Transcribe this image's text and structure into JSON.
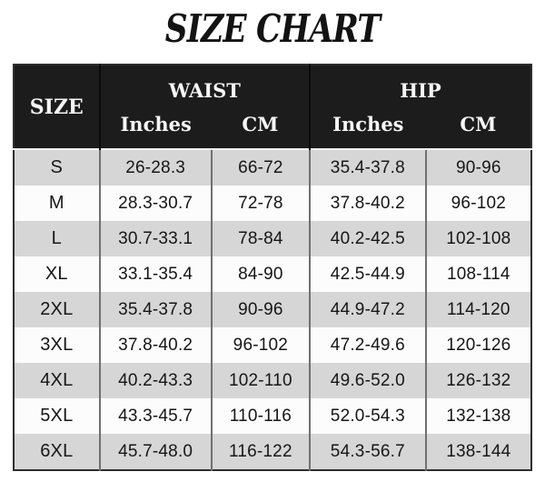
{
  "chart_data": {
    "type": "table",
    "title": "SIZE CHART",
    "column_groups": [
      {
        "label": "SIZE",
        "span": 1
      },
      {
        "label": "WAIST",
        "span": 2
      },
      {
        "label": "HIP",
        "span": 2
      }
    ],
    "sub_headers": [
      "Inches",
      "CM",
      "Inches",
      "CM"
    ],
    "columns": [
      "SIZE",
      "WAIST Inches",
      "WAIST CM",
      "HIP Inches",
      "HIP CM"
    ],
    "rows": [
      [
        "S",
        "26-28.3",
        "66-72",
        "35.4-37.8",
        "90-96"
      ],
      [
        "M",
        "28.3-30.7",
        "72-78",
        "37.8-40.2",
        "96-102"
      ],
      [
        "L",
        "30.7-33.1",
        "78-84",
        "40.2-42.5",
        "102-108"
      ],
      [
        "XL",
        "33.1-35.4",
        "84-90",
        "42.5-44.9",
        "108-114"
      ],
      [
        "2XL",
        "35.4-37.8",
        "90-96",
        "44.9-47.2",
        "114-120"
      ],
      [
        "3XL",
        "37.8-40.2",
        "96-102",
        "47.2-49.6",
        "120-126"
      ],
      [
        "4XL",
        "40.2-43.3",
        "102-110",
        "49.6-52.0",
        "126-132"
      ],
      [
        "5XL",
        "43.3-45.7",
        "110-116",
        "52.0-54.3",
        "132-138"
      ],
      [
        "6XL",
        "45.7-48.0",
        "116-122",
        "54.3-56.7",
        "138-144"
      ]
    ]
  },
  "colors": {
    "header_bg": "#1c1c1c",
    "header_text": "#f6f6f6",
    "header_divider": "#0b0b0b",
    "row_gray": "#d6d6d6",
    "row_white": "#fcfcfc",
    "body_divider": "#707070",
    "outer_border": "#2e2e2e",
    "title_text": "#131313",
    "page_bg": "#ffffff"
  }
}
